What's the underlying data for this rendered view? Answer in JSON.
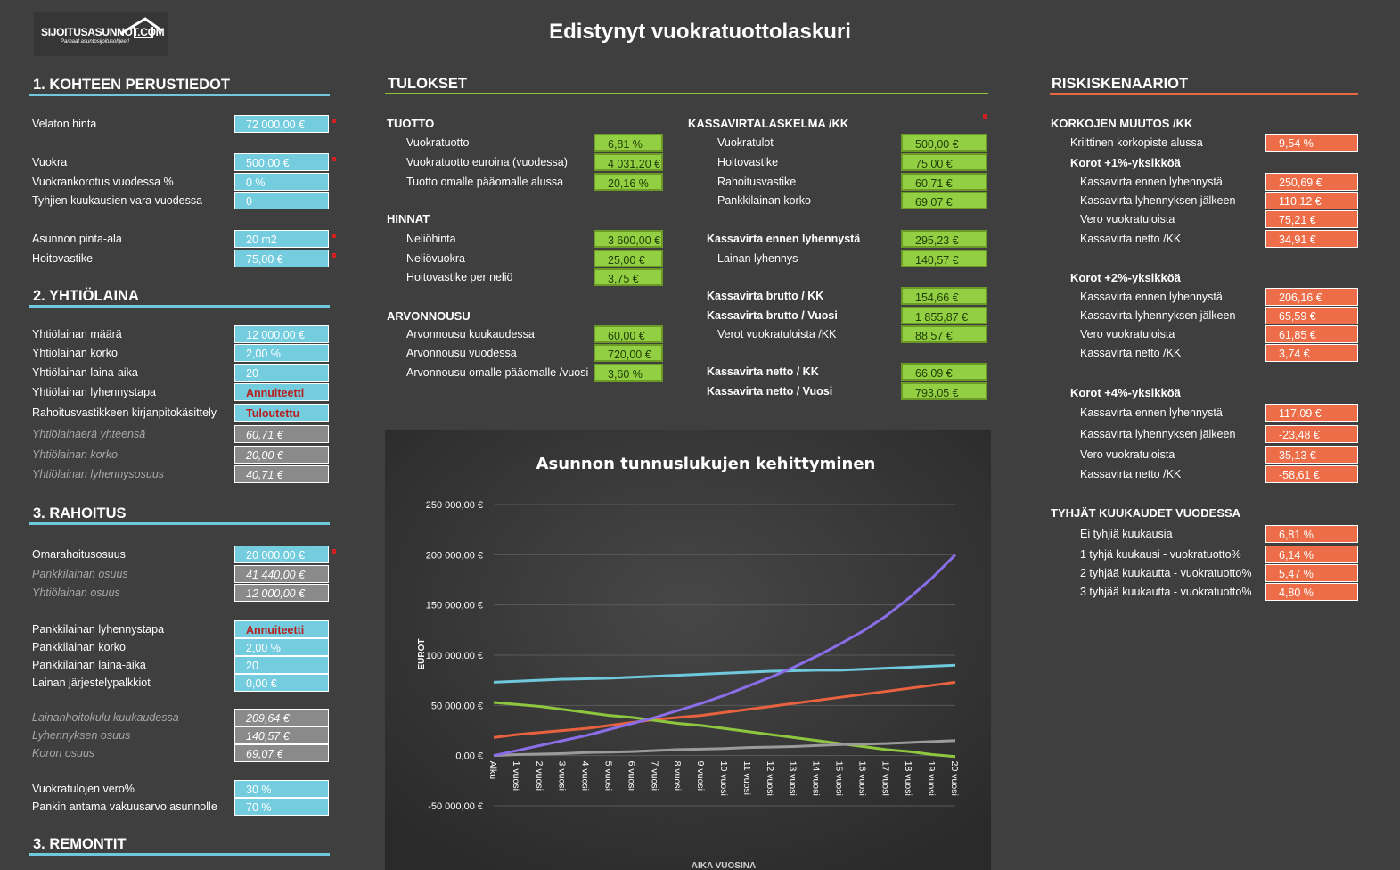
{
  "logo": {
    "name": "SIJOITUSASUNNOT.COM",
    "tagline": "Parhaat asuntosijoitusohjeet!"
  },
  "title": "Edistynyt vuokratuottolaskuri",
  "colors": {
    "input_blue": "#74ccdf",
    "result_green": "#92cf42",
    "risk_orange": "#ec6d48",
    "calc_gray": "#8a8a8a",
    "background": "#3f3f3f"
  },
  "s1": {
    "heading": "1. KOHTEEN PERUSTIEDOT",
    "rows": [
      {
        "label": "Velaton hinta",
        "value": "72 000,00 €"
      },
      {
        "label": "Vuokra",
        "value": "500,00 €"
      },
      {
        "label": "Vuokrankorotus vuodessa %",
        "value": "0 %"
      },
      {
        "label": "Tyhjien kuukausien vara vuodessa",
        "value": "0"
      },
      {
        "label": "Asunnon pinta-ala",
        "value": "20 m2"
      },
      {
        "label": "Hoitovastike",
        "value": "75,00 €"
      }
    ]
  },
  "s2": {
    "heading": "2. YHTIÖLAINA",
    "rows": [
      {
        "label": "Yhtiölainan määrä",
        "value": "12 000,00 €"
      },
      {
        "label": "Yhtiölainan korko",
        "value": "2,00 %"
      },
      {
        "label": "Yhtiölainan laina-aika",
        "value": "20"
      },
      {
        "label": "Yhtiölainan lyhennystapa",
        "value": "Annuiteetti"
      },
      {
        "label": "Rahoitusvastikkeen kirjanpitokäsittely",
        "value": "Tuloutettu"
      },
      {
        "label": "Yhtiölainaerä yhteensä",
        "value": "60,71 €"
      },
      {
        "label": "Yhtiölainan korko",
        "value": "20,00 €"
      },
      {
        "label": "Yhtiölainan lyhennysosuus",
        "value": "40,71 €"
      }
    ]
  },
  "s3": {
    "heading": "3. RAHOITUS",
    "rows": [
      {
        "label": "Omarahoitusosuus",
        "value": "20 000,00 €"
      },
      {
        "label": "Pankkilainan osuus",
        "value": "41 440,00 €"
      },
      {
        "label": "Yhtiölainan osuus",
        "value": "12 000,00 €"
      },
      {
        "label": "Pankkilainan lyhennystapa",
        "value": "Annuiteetti"
      },
      {
        "label": "Pankkilainan korko",
        "value": "2,00 %"
      },
      {
        "label": "Pankkilainan laina-aika",
        "value": "20"
      },
      {
        "label": "Lainan järjestelypalkkiot",
        "value": "0,00 €"
      },
      {
        "label": "Lainanhoitokulu kuukaudessa",
        "value": "209,64 €"
      },
      {
        "label": "Lyhennyksen osuus",
        "value": "140,57 €"
      },
      {
        "label": "Koron osuus",
        "value": "69,07 €"
      },
      {
        "label": "Vuokratulojen vero%",
        "value": "30 %"
      },
      {
        "label": "Pankin antama vakuusarvo asunnolle",
        "value": "70 %"
      }
    ]
  },
  "s4": {
    "heading": "3. REMONTIT"
  },
  "results": {
    "heading": "TULOKSET",
    "tuotto": {
      "title": "TUOTTO",
      "rows": [
        {
          "label": "Vuokratuotto",
          "value": "6,81 %"
        },
        {
          "label": "Vuokratuotto euroina (vuodessa)",
          "value": "4 031,20 €"
        },
        {
          "label": "Tuotto omalle pääomalle alussa",
          "value": "20,16 %"
        }
      ]
    },
    "hinnat": {
      "title": "HINNAT",
      "rows": [
        {
          "label": "Neliöhinta",
          "value": "3 600,00 €"
        },
        {
          "label": "Neliövuokra",
          "value": "25,00 €"
        },
        {
          "label": "Hoitovastike per neliö",
          "value": "3,75 €"
        }
      ]
    },
    "arvonnousu": {
      "title": "ARVONNOUSU",
      "rows": [
        {
          "label": "Arvonnousu kuukaudessa",
          "value": "60,00 €"
        },
        {
          "label": "Arvonnousu vuodessa",
          "value": "720,00 €"
        },
        {
          "label": "Arvonnousu omalle pääomalle /vuosi",
          "value": "3,60 %"
        }
      ]
    },
    "kassa": {
      "title": "KASSAVIRTALASKELMA /KK",
      "rows": [
        {
          "label": "Vuokratulot",
          "value": "500,00 €"
        },
        {
          "label": "Hoitovastike",
          "value": "75,00 €"
        },
        {
          "label": "Rahoitusvastike",
          "value": "60,71 €"
        },
        {
          "label": "Pankkilainan korko",
          "value": "69,07 €"
        },
        {
          "label": "Kassavirta ennen lyhennystä",
          "value": "295,23 €"
        },
        {
          "label": "Lainan lyhennys",
          "value": "140,57 €"
        },
        {
          "label": "Kassavirta brutto / KK",
          "value": "154,66 €"
        },
        {
          "label": "Kassavirta brutto / Vuosi",
          "value": "1 855,87 €"
        },
        {
          "label": "Verot vuokratuloista /KK",
          "value": "88,57 €"
        },
        {
          "label": "Kassavirta netto / KK",
          "value": "66,09 €"
        },
        {
          "label": "Kassavirta netto / Vuosi",
          "value": "793,05 €"
        }
      ]
    }
  },
  "risk": {
    "heading": "RISKISKENAARIOT",
    "korko_title": "KORKOJEN MUUTOS /KK",
    "kriittinen": {
      "label": "Kriittinen korkopiste alussa",
      "value": "9,54 %"
    },
    "groups": [
      {
        "title": "Korot +1%-yksikköä",
        "rows": [
          {
            "label": "Kassavirta ennen lyhennystä",
            "value": "250,69 €"
          },
          {
            "label": "Kassavirta lyhennyksen jälkeen",
            "value": "110,12 €"
          },
          {
            "label": "Vero vuokratuloista",
            "value": "75,21 €"
          },
          {
            "label": "Kassavirta netto /KK",
            "value": "34,91 €"
          }
        ]
      },
      {
        "title": "Korot +2%-yksikköä",
        "rows": [
          {
            "label": "Kassavirta ennen lyhennystä",
            "value": "206,16 €"
          },
          {
            "label": "Kassavirta lyhennyksen jälkeen",
            "value": "65,59 €"
          },
          {
            "label": "Vero vuokratuloista",
            "value": "61,85 €"
          },
          {
            "label": "Kassavirta netto /KK",
            "value": "3,74 €"
          }
        ]
      },
      {
        "title": "Korot +4%-yksikköä",
        "rows": [
          {
            "label": "Kassavirta ennen lyhennystä",
            "value": "117,09 €"
          },
          {
            "label": "Kassavirta lyhennyksen jälkeen",
            "value": "-23,48 €"
          },
          {
            "label": "Vero vuokratuloista",
            "value": "35,13 €"
          },
          {
            "label": "Kassavirta netto /KK",
            "value": "-58,61 €"
          }
        ]
      }
    ],
    "tyhjat_title": "TYHJÄT KUUKAUDET VUODESSA",
    "tyhjat": [
      {
        "label": "Ei tyhjiä kuukausia",
        "value": "6,81 %"
      },
      {
        "label": "1 tyhjä kuukausi - vuokratuotto%",
        "value": "6,14 %"
      },
      {
        "label": "2 tyhjää kuukautta - vuokratuotto%",
        "value": "5,47 %"
      },
      {
        "label": "3 tyhjää kuukautta - vuokratuotto%",
        "value": "4,80 %"
      }
    ]
  },
  "chart_data": {
    "type": "line",
    "title": "Asunnon tunnuslukujen kehittyminen",
    "ylabel": "EUROT",
    "xlabel": "AIKA VUOSINA",
    "ylim": [
      -50000,
      250000
    ],
    "yticks": [
      250000,
      200000,
      150000,
      100000,
      50000,
      0,
      -50000
    ],
    "ytick_labels": [
      "250 000,00 €",
      "200 000,00 €",
      "150 000,00 €",
      "100 000,00 €",
      "50 000,00 €",
      "0,00 €",
      "-50 000,00 €"
    ],
    "categories": [
      "Alku",
      "1 vuosi",
      "2 vuosi",
      "3 vuosi",
      "4 vuosi",
      "5 vuosi",
      "6 vuosi",
      "7 vuosi",
      "8 vuosi",
      "9 vuosi",
      "10 vuosi",
      "11 vuosi",
      "12 vuosi",
      "13 vuosi",
      "14 vuosi",
      "15 vuosi",
      "16 vuosi",
      "17 vuosi",
      "18 vuosi",
      "19 vuosi",
      "20 vuosi"
    ],
    "grid": true,
    "series": [
      {
        "color": "#6fc8dc",
        "values": [
          73000,
          74000,
          75000,
          76000,
          76500,
          77000,
          78000,
          79000,
          80000,
          81000,
          82000,
          83000,
          84000,
          84500,
          85000,
          85000,
          86000,
          87000,
          88000,
          89000,
          90000
        ]
      },
      {
        "color": "#e8623f",
        "values": [
          18000,
          21000,
          23000,
          25000,
          27000,
          30000,
          33000,
          36000,
          38000,
          40000,
          43000,
          46000,
          49000,
          52000,
          55000,
          58000,
          61000,
          64000,
          67000,
          70000,
          73000
        ]
      },
      {
        "color": "#8ec63f",
        "values": [
          53000,
          51000,
          49000,
          46000,
          43000,
          40000,
          38000,
          35000,
          32000,
          30000,
          27000,
          24000,
          21000,
          18000,
          15000,
          12000,
          9000,
          6000,
          4000,
          1000,
          -1000
        ]
      },
      {
        "color": "#9b9b9b",
        "values": [
          0,
          1000,
          1500,
          2000,
          3000,
          3500,
          4000,
          5000,
          6000,
          6500,
          7000,
          8000,
          8500,
          9000,
          10000,
          11000,
          11500,
          12000,
          13000,
          14000,
          15000
        ]
      },
      {
        "color": "#8a6ee8",
        "values": [
          0,
          5000,
          10000,
          15000,
          20000,
          26000,
          32000,
          38000,
          45000,
          52000,
          60000,
          69000,
          78000,
          88000,
          99000,
          111000,
          124000,
          139000,
          157000,
          177000,
          200000
        ]
      }
    ]
  }
}
